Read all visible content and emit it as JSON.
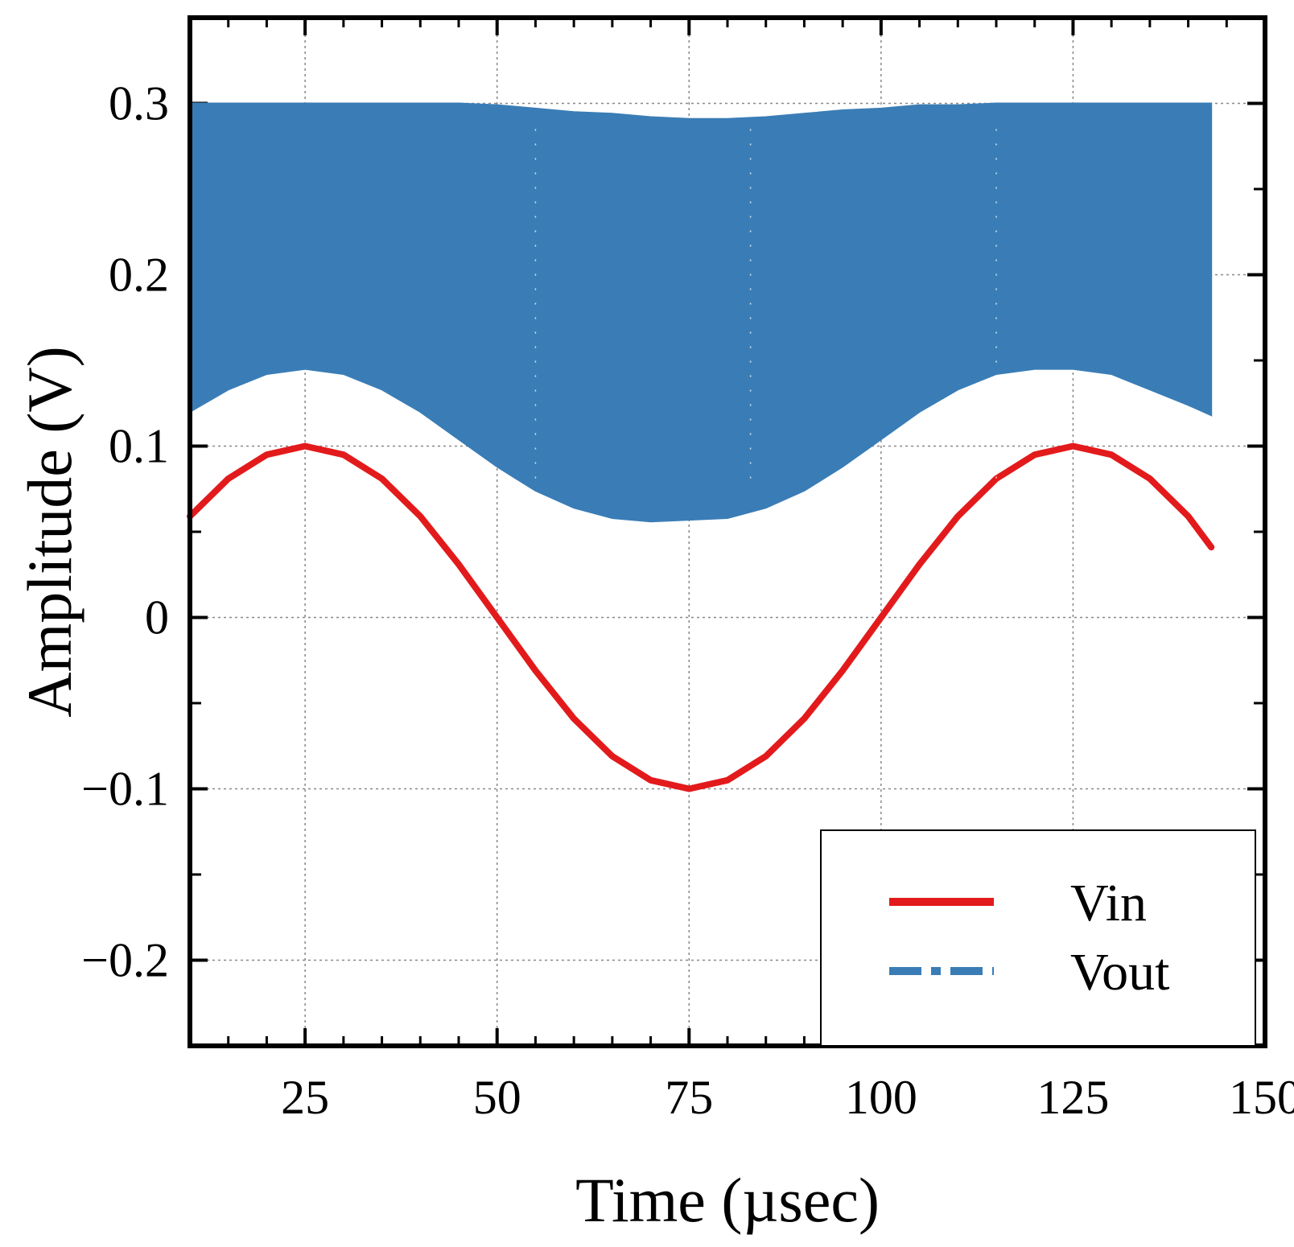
{
  "chart_data": {
    "type": "line",
    "title": "",
    "xlabel": "Time (µsec)",
    "ylabel": "Amplitude (V)",
    "xlim": [
      10,
      150
    ],
    "ylim": [
      -0.25,
      0.35
    ],
    "grid": true,
    "x_ticks": [
      25,
      50,
      75,
      100,
      125,
      150
    ],
    "x_tick_labels": [
      "25",
      "50",
      "75",
      "100",
      "125",
      "150"
    ],
    "y_ticks": [
      -0.2,
      -0.1,
      0,
      0.1,
      0.2,
      0.3
    ],
    "y_tick_labels": [
      "−0.2",
      "−0.1",
      "0",
      "0.1",
      "0.2",
      "0.3"
    ],
    "legend_position": "bottom-right",
    "series": [
      {
        "name": "Vin",
        "style": "solid",
        "color": "#e31a1c",
        "x": [
          10,
          15,
          20,
          25,
          30,
          35,
          40,
          45,
          50,
          55,
          60,
          65,
          70,
          75,
          80,
          85,
          90,
          95,
          100,
          105,
          110,
          115,
          120,
          125,
          130,
          135,
          140,
          143
        ],
        "y": [
          0.059,
          0.081,
          0.095,
          0.1,
          0.095,
          0.081,
          0.059,
          0.031,
          0.0,
          -0.031,
          -0.059,
          -0.081,
          -0.095,
          -0.1,
          -0.095,
          -0.081,
          -0.059,
          -0.031,
          0.0,
          0.031,
          0.059,
          0.081,
          0.095,
          0.1,
          0.095,
          0.081,
          0.059,
          0.041
        ]
      },
      {
        "name": "Vout",
        "style": "dash-dot",
        "color": "#3a7db6",
        "render": "filled-envelope",
        "x": [
          10,
          15,
          20,
          25,
          30,
          35,
          40,
          45,
          50,
          55,
          60,
          65,
          70,
          75,
          80,
          85,
          90,
          95,
          100,
          105,
          110,
          115,
          120,
          125,
          130,
          135,
          140,
          143
        ],
        "y_upper": [
          0.3,
          0.3,
          0.3,
          0.3,
          0.3,
          0.3,
          0.3,
          0.3,
          0.299,
          0.297,
          0.295,
          0.294,
          0.292,
          0.291,
          0.291,
          0.292,
          0.294,
          0.296,
          0.297,
          0.299,
          0.299,
          0.3,
          0.3,
          0.3,
          0.3,
          0.3,
          0.3,
          0.3
        ],
        "y_lower": [
          0.12,
          0.133,
          0.142,
          0.145,
          0.142,
          0.133,
          0.12,
          0.104,
          0.088,
          0.074,
          0.064,
          0.058,
          0.056,
          0.057,
          0.058,
          0.064,
          0.074,
          0.088,
          0.104,
          0.12,
          0.133,
          0.142,
          0.145,
          0.145,
          0.142,
          0.133,
          0.124,
          0.118
        ]
      }
    ]
  },
  "legend": {
    "items": [
      {
        "label": "Vin"
      },
      {
        "label": "Vout"
      }
    ]
  }
}
